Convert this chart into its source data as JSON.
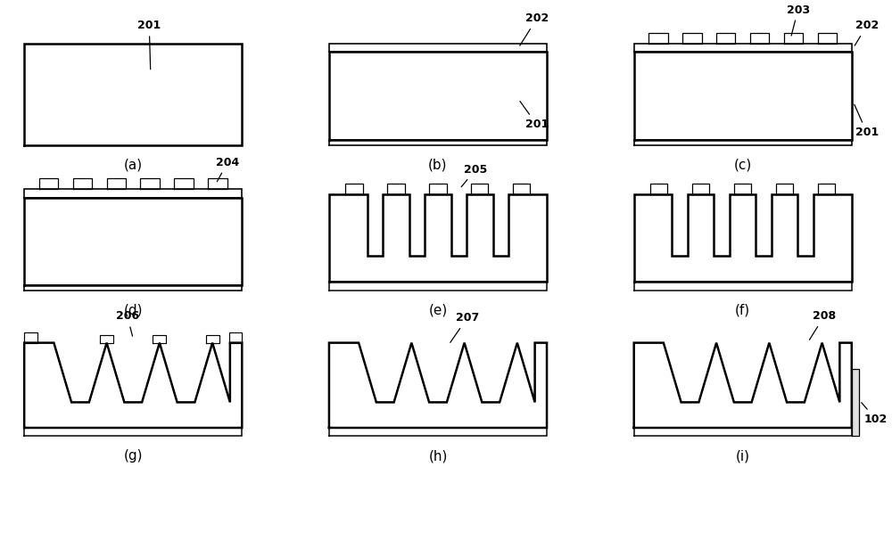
{
  "bg": "#ffffff",
  "lc": "black",
  "lw": 1.8,
  "fs_label": 11,
  "fs_annot": 9,
  "PW": 2.5,
  "PH": 1.15,
  "TH": 0.07,
  "SQW": 0.22,
  "SQH": 0.12,
  "NSQ": 6,
  "PC": [
    1.5,
    5.0,
    8.5
  ],
  "PR": [
    4.55,
    2.9,
    1.25
  ],
  "n_pk_ef": 5,
  "n_pk_ghi": 4,
  "panels": [
    "(a)",
    "(b)",
    "(c)",
    "(d)",
    "(e)",
    "(f)",
    "(g)",
    "(h)",
    "(i)"
  ]
}
